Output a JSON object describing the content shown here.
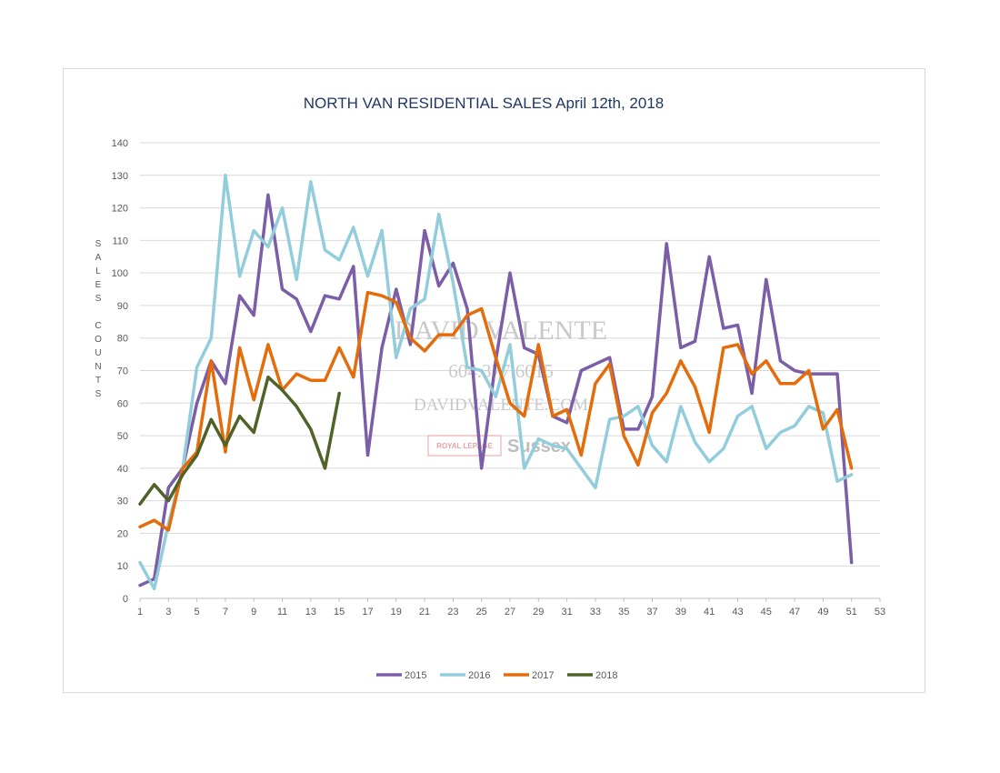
{
  "chart_data": {
    "type": "line",
    "title": "NORTH VAN RESIDENTIAL SALES April 12th, 2018",
    "ylabel": "SALES COUNTS",
    "ylabel_lines": [
      "S",
      "A",
      "L",
      "E",
      "S",
      "",
      "C",
      "O",
      "U",
      "N",
      "T",
      "S"
    ],
    "xlabel": "",
    "xlim": [
      1,
      53
    ],
    "ylim": [
      0,
      140
    ],
    "x_ticks": [
      1,
      3,
      5,
      7,
      9,
      11,
      13,
      15,
      17,
      19,
      21,
      23,
      25,
      27,
      29,
      31,
      33,
      35,
      37,
      39,
      41,
      43,
      45,
      47,
      49,
      51,
      53
    ],
    "y_ticks": [
      0,
      10,
      20,
      30,
      40,
      50,
      60,
      70,
      80,
      90,
      100,
      110,
      120,
      130,
      140
    ],
    "grid": true,
    "legend_position": "bottom",
    "watermark": {
      "name": "DAVID VALENTE",
      "phone": "604.377.6015",
      "site": "DAVIDVALENTE.COM",
      "brand": "ROYAL LEPAGE",
      "office": "Sussex"
    },
    "series": [
      {
        "name": "2015",
        "color": "#7b5ea7",
        "values": [
          4,
          6,
          34,
          40,
          60,
          73,
          66,
          93,
          87,
          124,
          95,
          92,
          82,
          93,
          92,
          102,
          44,
          77,
          95,
          78,
          113,
          96,
          103,
          89,
          40,
          73,
          100,
          77,
          75,
          56,
          54,
          70,
          72,
          74,
          52,
          52,
          62,
          109,
          77,
          79,
          105,
          83,
          84,
          63,
          98,
          73,
          70,
          69,
          69,
          69,
          11
        ]
      },
      {
        "name": "2016",
        "color": "#92cddc",
        "values": [
          11,
          3,
          23,
          40,
          71,
          80,
          130,
          99,
          113,
          108,
          120,
          98,
          128,
          107,
          104,
          114,
          99,
          113,
          74,
          89,
          92,
          118,
          97,
          71,
          70,
          62,
          78,
          40,
          49,
          47,
          46,
          40,
          34,
          55,
          56,
          59,
          47,
          42,
          59,
          48,
          42,
          46,
          56,
          59,
          46,
          51,
          53,
          59,
          57,
          36,
          38
        ]
      },
      {
        "name": "2017",
        "color": "#e46c0a",
        "values": [
          22,
          24,
          21,
          40,
          45,
          73,
          45,
          77,
          61,
          78,
          64,
          69,
          67,
          67,
          77,
          68,
          94,
          93,
          91,
          80,
          76,
          81,
          81,
          87,
          89,
          74,
          60,
          56,
          78,
          56,
          58,
          44,
          66,
          72,
          50,
          41,
          57,
          63,
          73,
          65,
          51,
          77,
          78,
          69,
          73,
          66,
          66,
          70,
          52,
          58,
          40
        ]
      },
      {
        "name": "2018",
        "color": "#4f6228",
        "values": [
          29,
          35,
          30,
          38,
          44,
          55,
          47,
          56,
          51,
          68,
          64,
          59,
          52,
          40,
          63
        ]
      }
    ]
  }
}
